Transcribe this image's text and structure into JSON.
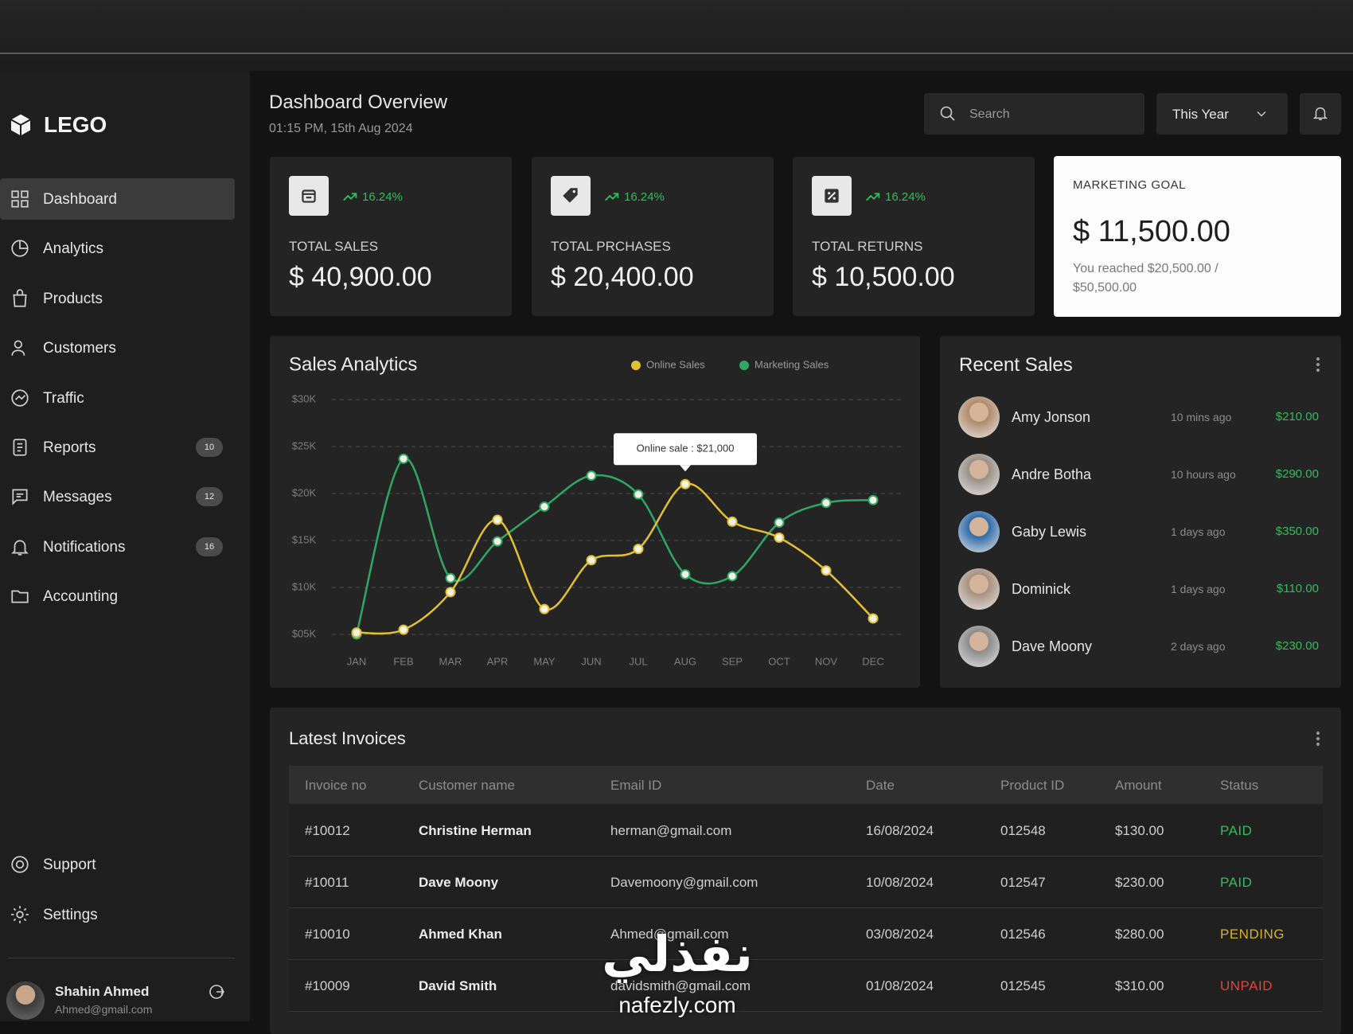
{
  "sidebar": {
    "logo": "LEGO",
    "nav": [
      {
        "label": "Dashboard"
      },
      {
        "label": "Analytics"
      },
      {
        "label": "Products"
      },
      {
        "label": "Customers"
      },
      {
        "label": "Traffic"
      },
      {
        "label": "Reports",
        "badge": "10"
      },
      {
        "label": "Messages",
        "badge": "12"
      },
      {
        "label": "Notifications",
        "badge": "16"
      },
      {
        "label": "Accounting"
      }
    ],
    "footer_nav": [
      "Support",
      "Settings"
    ],
    "user": {
      "name": "Shahin Ahmed",
      "email": "Ahmed@gmail.com"
    }
  },
  "header": {
    "title": "Dashboard Overview",
    "subtitle": "01:15 PM, 15th Aug 2024",
    "search_placeholder": "Search",
    "period": "This Year"
  },
  "stats": [
    {
      "trend": "16.24%",
      "label": "TOTAL SALES",
      "value": "$ 40,900.00"
    },
    {
      "trend": "16.24%",
      "label": "TOTAL PRCHASES",
      "value": "$ 20,400.00"
    },
    {
      "trend": "16.24%",
      "label": "TOTAL RETURNS",
      "value": "$ 10,500.00"
    }
  ],
  "goal": {
    "label": "MARKETING GOAL",
    "value": "$ 11,500.00",
    "note": "You reached $20,500.00 / $50,500.00"
  },
  "chart_data": {
    "type": "line",
    "title": "Sales Analytics",
    "categories": [
      "JAN",
      "FEB",
      "MAR",
      "APR",
      "MAY",
      "JUN",
      "JUL",
      "AUG",
      "SEP",
      "OCT",
      "NOV",
      "DEC"
    ],
    "series": [
      {
        "name": "Online Sales",
        "color": "#e3c033",
        "values": [
          5200,
          5500,
          9500,
          17200,
          7700,
          12900,
          14100,
          21000,
          17000,
          15300,
          11800,
          6700
        ]
      },
      {
        "name": "Marketing Sales",
        "color": "#2fa866",
        "values": [
          5000,
          23700,
          11000,
          14900,
          18600,
          21900,
          19900,
          11400,
          11200,
          16900,
          19000,
          19300
        ]
      }
    ],
    "annotation": "Online sale : $21,000",
    "ylim": [
      5000,
      30000
    ],
    "yticks": [
      {
        "value": 5000,
        "label": "$05K"
      },
      {
        "value": 10000,
        "label": "$10K"
      },
      {
        "value": 15000,
        "label": "$15K"
      },
      {
        "value": 20000,
        "label": "$20K"
      },
      {
        "value": 25000,
        "label": "$25K"
      },
      {
        "value": 30000,
        "label": "$30K"
      }
    ],
    "grid": true
  },
  "recent_sales": {
    "title": "Recent Sales",
    "rows": [
      {
        "name": "Amy Jonson",
        "time": "10 mins ago",
        "amount": "$210.00"
      },
      {
        "name": "Andre Botha",
        "time": "10 hours ago",
        "amount": "$290.00"
      },
      {
        "name": "Gaby Lewis",
        "time": "1 days ago",
        "amount": "$350.00"
      },
      {
        "name": "Dominick",
        "time": "1 days ago",
        "amount": "$110.00"
      },
      {
        "name": "Dave Moony",
        "time": "2 days ago",
        "amount": "$230.00"
      }
    ]
  },
  "invoices": {
    "title": "Latest Invoices",
    "columns": [
      "Invoice no",
      "Customer name",
      "Email ID",
      "Date",
      "Product ID",
      "Amount",
      "Status"
    ],
    "rows": [
      [
        "#10012",
        "Christine Herman",
        "herman@gmail.com",
        "16/08/2024",
        "012548",
        "$130.00",
        "PAID"
      ],
      [
        "#10011",
        "Dave Moony",
        "Davemoony@gmail.com",
        "10/08/2024",
        "012547",
        "$230.00",
        "PAID"
      ],
      [
        "#10010",
        "Ahmed Khan",
        "Ahmed@gmail.com",
        "03/08/2024",
        "012546",
        "$280.00",
        "PENDING"
      ],
      [
        "#10009",
        "David Smith",
        "davidsmith@gmail.com",
        "01/08/2024",
        "012545",
        "$310.00",
        "UNPAID"
      ]
    ],
    "status_colors": [
      "#2fbf5b",
      "#2fbf5b",
      "#d6b22e",
      "#e0443c"
    ]
  },
  "watermark": {
    "arabic": "نفذلي",
    "latin": "nafezly.com"
  }
}
